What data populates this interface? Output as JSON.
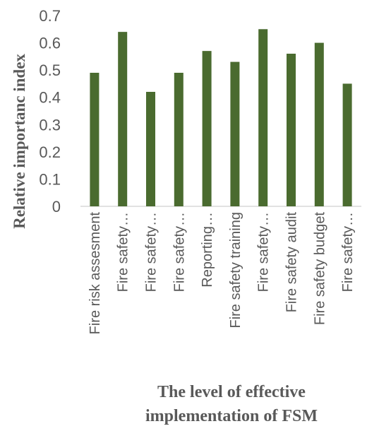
{
  "chart_data": {
    "type": "bar",
    "title": "",
    "xlabel_lines": [
      "The level of effective",
      "implementation of FSM"
    ],
    "ylabel": "Relative importanc index",
    "categories": [
      "Fire risk assesment",
      "Fire safety…",
      "Fire safety…",
      "Fire safety…",
      "Reporting…",
      "Fire safety training",
      "Fire safety…",
      "Fire safety audit",
      "Fire safety budget",
      "Fire safety…"
    ],
    "values": [
      0.49,
      0.64,
      0.42,
      0.49,
      0.57,
      0.53,
      0.65,
      0.56,
      0.6,
      0.45
    ],
    "ylim": [
      0,
      0.7
    ],
    "yticks": [
      0,
      0.1,
      0.2,
      0.3,
      0.4,
      0.5,
      0.6,
      0.7
    ],
    "ytick_labels": [
      "0",
      "0.1",
      "0.2",
      "0.3",
      "0.4",
      "0.5",
      "0.6",
      "0.7"
    ],
    "bar_color": "#4a6b2f",
    "grid": false,
    "legend": "none"
  }
}
